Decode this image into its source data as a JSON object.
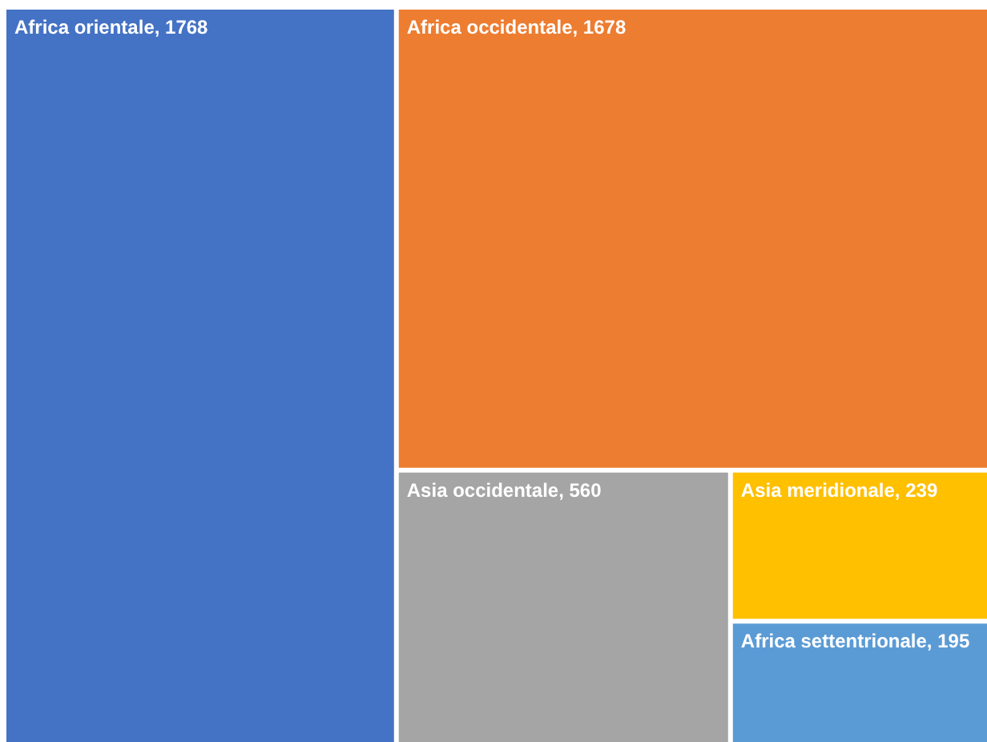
{
  "chart_data": {
    "type": "other",
    "categories": [
      "Africa orientale",
      "Africa occidentale",
      "Asia occidentale",
      "Asia meridionale",
      "Africa settentrionale"
    ],
    "values": [
      1768,
      1678,
      560,
      239,
      195
    ],
    "value_labels": [
      ", 1768",
      ", 1678",
      ", 560",
      ", 239",
      ", 195"
    ],
    "colors": [
      "#4472c4",
      "#ed7d31",
      "#a5a5a5",
      "#ffc000",
      "#5b9bd5"
    ]
  }
}
